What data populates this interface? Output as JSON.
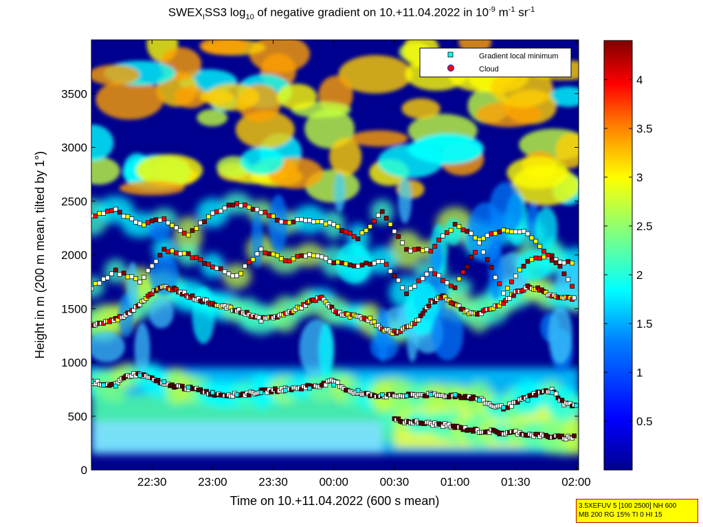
{
  "title": {
    "main": "SWEX",
    "main_sub": "I",
    "part2": "SS3 log",
    "log_sub": "10",
    "part3": " of negative gradient on 10.+11.04.2022 in 10",
    "exp1": "-9",
    "part4": " m",
    "exp2": "-1",
    "part5": " sr",
    "exp3": "-1"
  },
  "info_box": {
    "line1": "3.5XEFUV 5 [100 2500] NH 600",
    "line2": "MB 200 RG 15% TI 0 HI 15"
  },
  "chart_data": {
    "type": "heatmap",
    "xlabel": "Time on 10.+11.04.2022 (600 s mean)",
    "ylabel": "Height in m (200 m mean, tilted by 1°)",
    "x_tick_labels": [
      "22:30",
      "23:00",
      "23:30",
      "00:00",
      "00:30",
      "01:00",
      "01:30",
      "02:00"
    ],
    "x_tick_hours": [
      22.5,
      23.0,
      23.5,
      24.0,
      24.5,
      25.0,
      25.5,
      26.0
    ],
    "xlim_hours": [
      22.0,
      26.02
    ],
    "y_ticks": [
      0,
      500,
      1000,
      1500,
      2000,
      2500,
      3000,
      3500
    ],
    "ylim": [
      0,
      4000
    ],
    "colorbar": {
      "ticks": [
        0.5,
        1,
        1.5,
        2,
        2.5,
        3,
        3.5,
        4
      ],
      "tick_labels": [
        "0.5",
        "1",
        "1.5",
        "2",
        "2.5",
        "3",
        "3.5",
        "4"
      ],
      "range": [
        0,
        4.4
      ],
      "colormap": "jet"
    },
    "legend": {
      "placement": "top-right",
      "entries": [
        {
          "label": "Gradient local minimum",
          "marker": "square",
          "color": "#00ffff"
        },
        {
          "label": "Cloud",
          "marker": "circle",
          "color": "#ff0000"
        }
      ]
    },
    "layers": [
      {
        "name": "Gradient local minimum",
        "color": "#00ffff",
        "x": [
          22.0,
          22.1,
          22.2,
          22.4,
          22.6,
          22.8,
          23.0,
          23.2,
          23.4,
          23.6,
          23.8,
          24.0,
          24.2,
          24.4,
          24.6,
          24.8,
          25.0,
          25.2,
          25.4,
          25.6,
          25.8,
          26.0
        ],
        "y": [
          820,
          790,
          780,
          880,
          820,
          770,
          720,
          700,
          720,
          740,
          760,
          790,
          740,
          700,
          690,
          700,
          700,
          650,
          580,
          650,
          720,
          600
        ]
      }
    ],
    "series": [
      {
        "x": [
          22.0,
          22.1,
          22.2,
          22.3,
          22.4,
          22.5,
          22.6,
          22.7,
          22.8,
          22.9,
          23.0,
          23.1,
          23.2,
          23.3,
          23.4,
          23.5,
          23.6,
          23.7,
          23.8,
          23.9,
          24.0,
          24.1,
          24.2,
          24.3,
          24.4,
          24.5,
          24.6,
          24.7,
          24.8,
          24.9,
          25.0,
          25.1,
          25.2,
          25.3,
          25.4,
          25.5,
          25.6,
          25.7,
          25.8,
          25.9,
          26.0
        ],
        "y": [
          820,
          800,
          790,
          880,
          890,
          850,
          790,
          780,
          760,
          740,
          710,
          700,
          700,
          710,
          730,
          740,
          750,
          760,
          780,
          790,
          830,
          750,
          710,
          700,
          690,
          690,
          690,
          700,
          700,
          690,
          690,
          680,
          660,
          600,
          580,
          620,
          680,
          720,
          740,
          620,
          600
        ]
      },
      {
        "x": [
          24.5,
          24.6,
          24.7,
          24.8,
          24.9,
          25.0,
          25.1,
          25.2,
          25.3,
          25.4,
          25.5,
          25.6,
          25.7,
          25.8,
          25.9,
          26.0
        ],
        "y": [
          470,
          450,
          440,
          430,
          420,
          400,
          380,
          360,
          360,
          340,
          350,
          330,
          320,
          310,
          300,
          310
        ]
      },
      {
        "x": [
          22.0,
          22.1,
          22.2,
          22.3,
          22.4,
          22.5,
          22.6,
          22.7,
          22.8,
          22.9,
          23.0,
          23.1,
          23.2,
          23.3,
          23.4,
          23.5,
          23.6,
          23.7,
          23.8,
          23.9,
          24.0,
          24.1,
          24.2,
          24.3,
          24.4,
          24.5,
          24.6,
          24.7,
          24.8,
          24.9,
          25.0,
          25.1,
          25.2,
          25.3,
          25.4,
          25.5,
          25.6,
          25.7,
          25.8,
          25.9,
          26.0
        ],
        "y": [
          1350,
          1370,
          1400,
          1450,
          1550,
          1650,
          1700,
          1680,
          1620,
          1580,
          1550,
          1520,
          1480,
          1450,
          1400,
          1420,
          1450,
          1500,
          1560,
          1600,
          1480,
          1440,
          1430,
          1400,
          1300,
          1280,
          1320,
          1400,
          1560,
          1620,
          1540,
          1470,
          1450,
          1500,
          1560,
          1650,
          1700,
          1680,
          1620,
          1610,
          1590
        ]
      },
      {
        "x": [
          22.0,
          22.2,
          22.4,
          22.6,
          22.8,
          23.0,
          23.2,
          23.4,
          23.6,
          23.8,
          24.0,
          24.2,
          24.4,
          24.6,
          24.8,
          25.0,
          25.2,
          25.4,
          25.6,
          25.8,
          26.0
        ],
        "y": [
          2350,
          2420,
          2280,
          2340,
          2180,
          2390,
          2480,
          2400,
          2300,
          2330,
          2280,
          2150,
          2400,
          2050,
          2050,
          2280,
          2150,
          2240,
          2200,
          1950,
          1920
        ]
      },
      {
        "x": [
          22.0,
          22.2,
          22.4,
          22.6,
          22.8,
          23.0,
          23.2,
          23.4,
          23.6,
          23.8,
          24.0,
          24.2,
          24.4,
          24.6,
          24.8,
          25.0,
          25.2,
          25.4,
          25.6,
          25.8,
          26.0
        ],
        "y": [
          1700,
          1850,
          1750,
          2050,
          2000,
          1900,
          1800,
          2050,
          1950,
          2000,
          1940,
          1900,
          1950,
          1650,
          1850,
          1700,
          2100,
          1650,
          1950,
          2000,
          1650
        ]
      }
    ],
    "colormap_stops": [
      "#00008f",
      "#0000ff",
      "#0080ff",
      "#00ffff",
      "#80ff80",
      "#ffff00",
      "#ff8000",
      "#ff0000",
      "#800000"
    ]
  }
}
